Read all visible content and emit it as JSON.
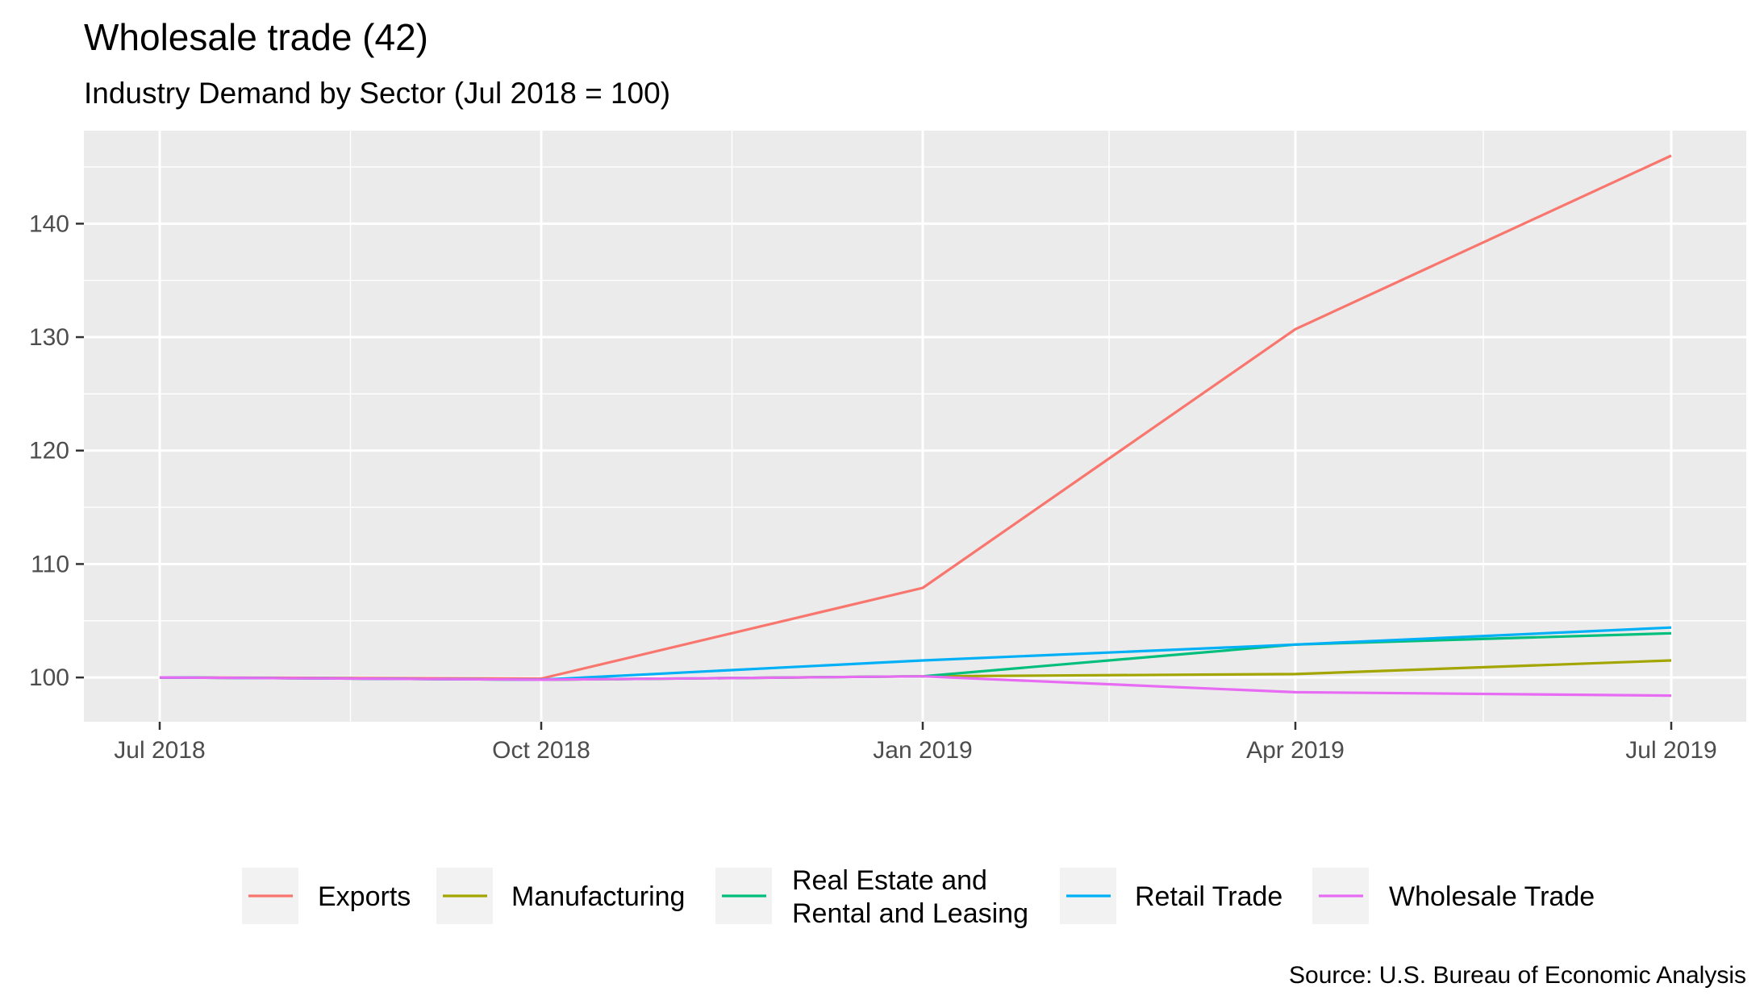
{
  "chart_data": {
    "type": "line",
    "title": "Wholesale trade (42)",
    "subtitle": "Industry Demand by Sector (Jul 2018 = 100)",
    "caption": "Source: U.S. Bureau of Economic Analysis",
    "xlabel": "",
    "ylabel": "",
    "x": [
      "Jul 2018",
      "Oct 2018",
      "Jan 2019",
      "Apr 2019",
      "Jul 2019"
    ],
    "x_ticks": [
      "Jul 2018",
      "Oct 2018",
      "Jan 2019",
      "Apr 2019",
      "Jul 2019"
    ],
    "y_ticks": [
      100,
      110,
      120,
      130,
      140
    ],
    "ylim": [
      96.1,
      148.2
    ],
    "grid": true,
    "legend_position": "bottom",
    "series": [
      {
        "name": "Exports",
        "color": "#F8766D",
        "values": [
          100,
          99.9,
          107.9,
          130.7,
          146.0
        ]
      },
      {
        "name": "Manufacturing",
        "color": "#A3A500",
        "values": [
          100,
          99.8,
          100.1,
          100.3,
          101.5
        ]
      },
      {
        "name": "Real Estate and Rental and Leasing",
        "color": "#00BF7D",
        "values": [
          100,
          99.8,
          100.1,
          102.9,
          103.9
        ]
      },
      {
        "name": "Retail Trade",
        "color": "#00B0F6",
        "values": [
          100,
          99.8,
          101.5,
          102.9,
          104.4
        ]
      },
      {
        "name": "Wholesale Trade",
        "color": "#E76BF3",
        "values": [
          100,
          99.8,
          100.1,
          98.7,
          98.4
        ]
      }
    ]
  }
}
